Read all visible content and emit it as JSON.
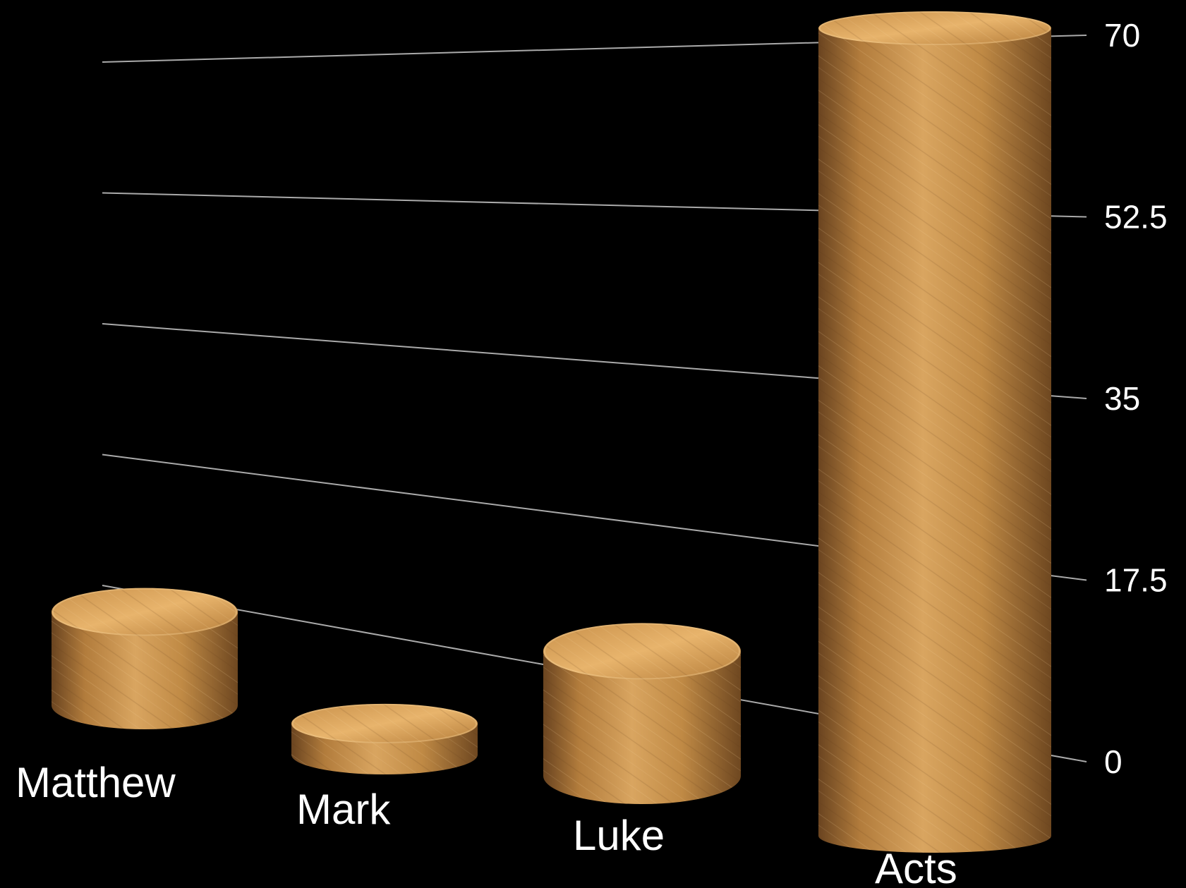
{
  "chart_data": {
    "type": "bar",
    "categories": [
      "Matthew",
      "Mark",
      "Luke",
      "Acts"
    ],
    "values": [
      9,
      3,
      12,
      70
    ],
    "title": "",
    "xlabel": "",
    "ylabel": "",
    "ylim": [
      0,
      70
    ],
    "yticks": [
      "0",
      "17.5",
      "35",
      "52.5",
      "70"
    ],
    "grid": true,
    "style": "3d-cylinder"
  },
  "colors": {
    "background": "#000000",
    "bar_light": "#e8b46c",
    "bar_mid": "#c08a45",
    "bar_dark": "#7a5224",
    "gridline": "#c8c8c8",
    "text": "#ffffff"
  }
}
